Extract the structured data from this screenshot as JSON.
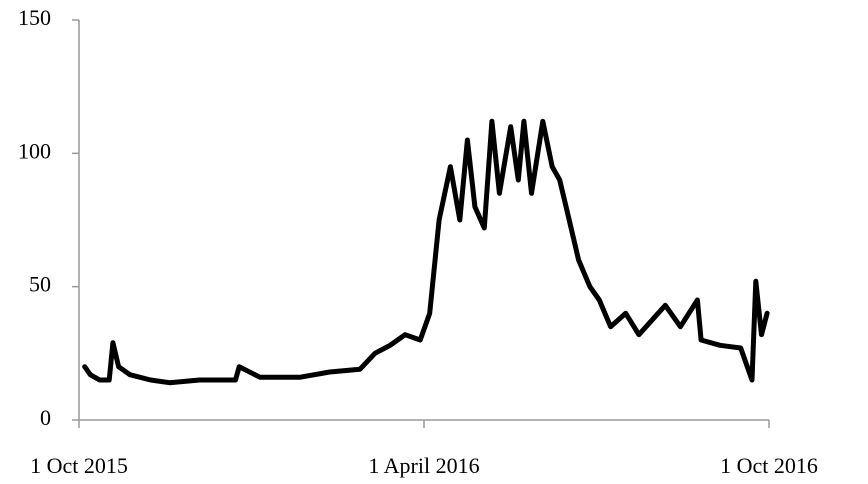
{
  "chart_data": {
    "type": "line",
    "color": "#000000",
    "x": [
      "2015-10-04",
      "2015-10-07",
      "2015-10-12",
      "2015-10-17",
      "2015-10-19",
      "2015-10-22",
      "2015-10-28",
      "2015-11-08",
      "2015-11-18",
      "2015-12-04",
      "2015-12-23",
      "2015-12-25",
      "2016-01-05",
      "2016-01-26",
      "2016-02-11",
      "2016-02-27",
      "2016-03-06",
      "2016-03-14",
      "2016-03-22",
      "2016-03-30",
      "2016-04-04",
      "2016-04-09",
      "2016-04-15",
      "2016-04-20",
      "2016-04-24",
      "2016-04-28",
      "2016-05-03",
      "2016-05-07",
      "2016-05-11",
      "2016-05-17",
      "2016-05-21",
      "2016-05-24",
      "2016-05-28",
      "2016-06-03",
      "2016-06-08",
      "2016-06-12",
      "2016-06-17",
      "2016-06-22",
      "2016-06-28",
      "2016-07-03",
      "2016-07-09",
      "2016-07-17",
      "2016-07-24",
      "2016-08-07",
      "2016-08-15",
      "2016-08-24",
      "2016-08-26",
      "2016-09-05",
      "2016-09-16",
      "2016-09-22",
      "2016-09-24",
      "2016-09-27",
      "2016-09-30"
    ],
    "values": [
      20,
      17,
      15,
      15,
      29,
      20,
      17,
      15,
      14,
      15,
      15,
      20,
      16,
      16,
      18,
      19,
      25,
      28,
      32,
      30,
      40,
      75,
      95,
      75,
      105,
      80,
      72,
      112,
      85,
      110,
      90,
      112,
      85,
      112,
      95,
      90,
      75,
      60,
      50,
      45,
      35,
      40,
      32,
      43,
      35,
      45,
      30,
      28,
      27,
      15,
      52,
      32,
      40
    ],
    "xlim": [
      "2015-10-01",
      "2016-10-01"
    ],
    "xticks": [
      {
        "value": "2015-10-01",
        "label": "1 Oct 2015"
      },
      {
        "value": "2016-04-01",
        "label": "1 April 2016"
      },
      {
        "value": "2016-10-01",
        "label": "1 Oct 2016"
      }
    ],
    "ylim": [
      0,
      150
    ],
    "yticks": [
      0,
      50,
      100,
      150
    ]
  }
}
